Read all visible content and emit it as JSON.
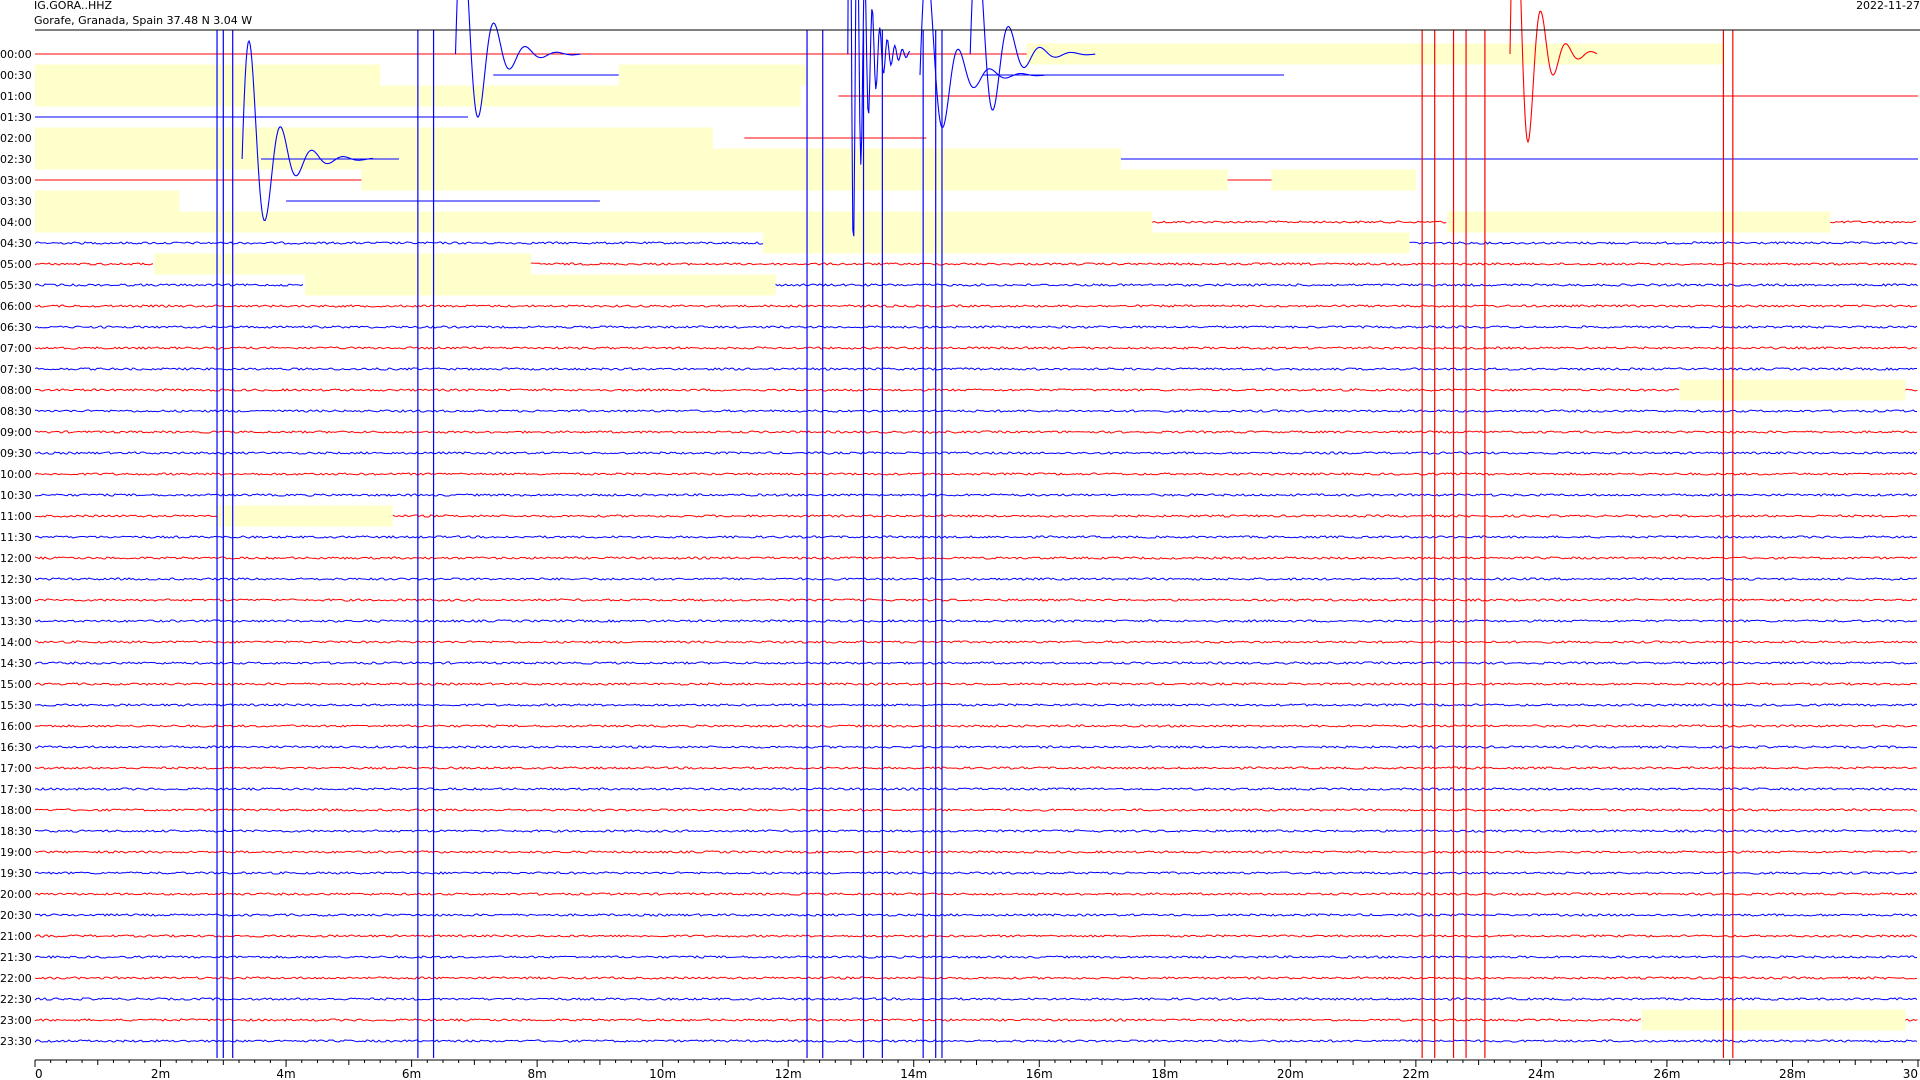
{
  "header": {
    "station": "IG.GORA..HHZ",
    "location": "Gorafe, Granada, Spain  37.48 N 3.04 W",
    "date": "2022-11-27"
  },
  "colors": {
    "trace_a": "#ff0000",
    "trace_b": "#0000ff",
    "gap_fill": "#ffffcc",
    "axis": "#000000",
    "background": "#ffffff"
  },
  "chart_data": {
    "type": "line",
    "title": "",
    "xlabel": "",
    "ylabel": "",
    "xlim": [
      0,
      30
    ],
    "x_unit": "min",
    "x_ticks": [
      "0",
      "2m",
      "4m",
      "6m",
      "8m",
      "10m",
      "12m",
      "14m",
      "16m",
      "18m",
      "20m",
      "22m",
      "24m",
      "26m",
      "28m",
      "30"
    ],
    "row_labels": [
      "00:00",
      "00:30",
      "01:00",
      "01:30",
      "02:00",
      "02:30",
      "03:00",
      "03:30",
      "04:00",
      "04:30",
      "05:00",
      "05:30",
      "06:00",
      "06:30",
      "07:00",
      "07:30",
      "08:00",
      "08:30",
      "09:00",
      "09:30",
      "10:00",
      "10:30",
      "11:00",
      "11:30",
      "12:00",
      "12:30",
      "13:00",
      "13:30",
      "14:00",
      "14:30",
      "15:00",
      "15:30",
      "16:00",
      "16:30",
      "17:00",
      "17:30",
      "18:00",
      "18:30",
      "19:00",
      "19:30",
      "20:00",
      "20:30",
      "21:00",
      "21:30",
      "22:00",
      "22:30",
      "23:00",
      "23:30"
    ],
    "row_colors": [
      "red",
      "blue"
    ],
    "gaps": [
      {
        "row": "00:00",
        "start": 15.8,
        "end": 26.9
      },
      {
        "row": "00:30",
        "start": 0.0,
        "end": 5.5
      },
      {
        "row": "00:30",
        "start": 9.3,
        "end": 12.3
      },
      {
        "row": "01:00",
        "start": 0.0,
        "end": 12.2
      },
      {
        "row": "02:00",
        "start": 0.0,
        "end": 10.8
      },
      {
        "row": "02:30",
        "start": 0.0,
        "end": 17.3
      },
      {
        "row": "03:00",
        "start": 5.2,
        "end": 19.0
      },
      {
        "row": "03:00",
        "start": 19.7,
        "end": 22.0
      },
      {
        "row": "03:30",
        "start": 0.0,
        "end": 2.3
      },
      {
        "row": "04:00",
        "start": 0.0,
        "end": 17.8
      },
      {
        "row": "04:00",
        "start": 22.5,
        "end": 28.6
      },
      {
        "row": "04:30",
        "start": 11.6,
        "end": 21.9
      },
      {
        "row": "05:00",
        "start": 1.9,
        "end": 7.9
      },
      {
        "row": "05:30",
        "start": 4.3,
        "end": 11.8
      },
      {
        "row": "08:00",
        "start": 26.2,
        "end": 29.8
      },
      {
        "row": "11:00",
        "start": 2.9,
        "end": 5.7
      },
      {
        "row": "23:00",
        "start": 25.6,
        "end": 29.8
      }
    ],
    "segments": [
      {
        "row": "00:30",
        "start": 7.3,
        "end": 9.3
      },
      {
        "row": "00:30",
        "start": 15.1,
        "end": 19.9
      },
      {
        "row": "01:30",
        "start": 0.0,
        "end": 6.9
      },
      {
        "row": "02:00",
        "start": 11.3,
        "end": 14.2
      },
      {
        "row": "02:30",
        "start": 3.6,
        "end": 5.8
      },
      {
        "row": "02:30",
        "start": 17.3,
        "end": 30.0
      },
      {
        "row": "03:30",
        "start": 4.0,
        "end": 9.0
      }
    ],
    "spikes_blue": [
      2.9,
      3.0,
      3.15,
      6.1,
      6.35,
      12.3,
      12.55,
      13.2,
      13.5,
      14.15,
      14.35,
      14.45
    ],
    "spikes_red": [
      22.1,
      22.3,
      22.6,
      22.8,
      23.1,
      26.9,
      27.05
    ],
    "events": [
      {
        "x": 3.3,
        "row": "02:30",
        "color": "blue",
        "amp": 1.6,
        "period": 0.5,
        "decay": 1.1,
        "tail": 1.0
      },
      {
        "x": 6.7,
        "row": "00:00",
        "color": "blue",
        "amp": 1.8,
        "period": 0.5,
        "decay": 1.0,
        "tail": 1.0
      },
      {
        "x": 14.1,
        "row": "00:30",
        "color": "blue",
        "amp": 1.5,
        "period": 0.5,
        "decay": 1.0,
        "tail": 1.0
      },
      {
        "x": 14.9,
        "row": "00:00",
        "color": "blue",
        "amp": 1.6,
        "period": 0.5,
        "decay": 1.0,
        "tail": 1.0
      },
      {
        "x": 23.5,
        "row": "00:00",
        "color": "red",
        "amp": 2.5,
        "period": 0.4,
        "decay": 0.8,
        "tail": 0.6
      },
      {
        "x": 12.95,
        "row": "00:00",
        "color": "blue",
        "amp": 3.0,
        "period": 0.12,
        "decay": 0.6,
        "tail": 0.4
      }
    ]
  }
}
